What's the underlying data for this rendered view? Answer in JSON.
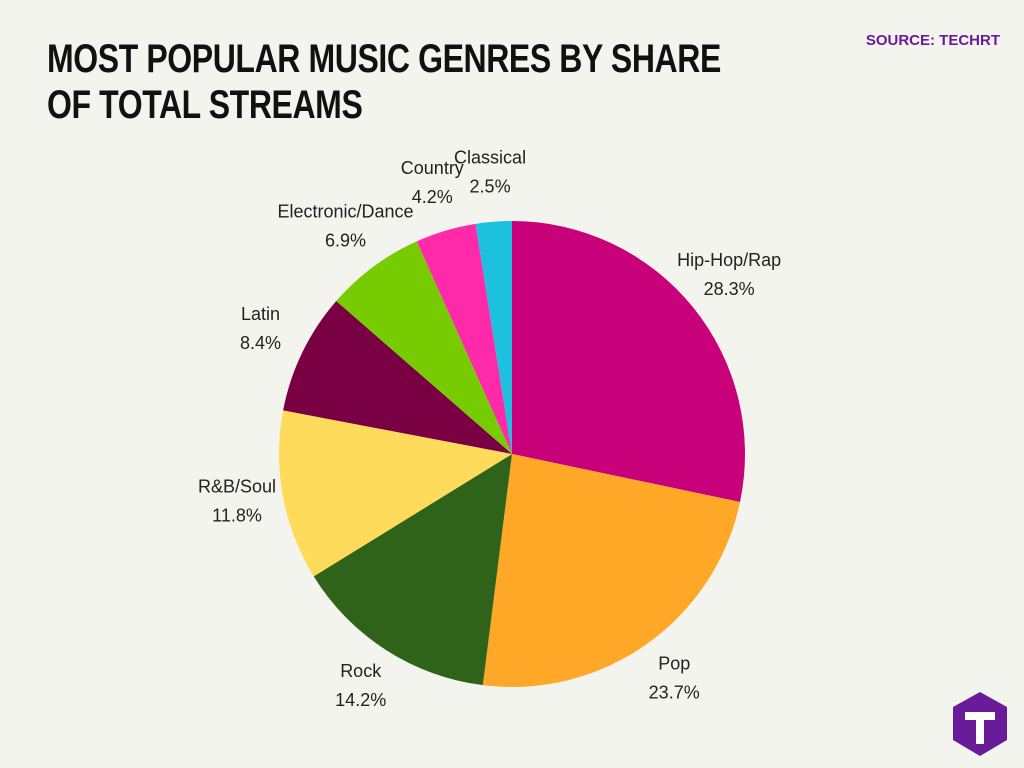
{
  "chart_data": {
    "type": "pie",
    "title": "MOST POPULAR MUSIC GENRES BY SHARE OF TOTAL STREAMS",
    "source": "SOURCE: TECHRT",
    "categories": [
      "Hip-Hop/Rap",
      "Pop",
      "Rock",
      "R&B/Soul",
      "Latin",
      "Electronic/Dance",
      "Country",
      "Classical"
    ],
    "values": [
      28.3,
      23.7,
      14.2,
      11.8,
      8.4,
      6.9,
      4.2,
      2.5
    ],
    "value_labels": [
      "28.3%",
      "23.7%",
      "14.2%",
      "11.8%",
      "8.4%",
      "6.9%",
      "4.2%",
      "2.5%"
    ],
    "colors": [
      "#c8007a",
      "#ffa726",
      "#2e6319",
      "#ffdb5c",
      "#7a0044",
      "#76cc00",
      "#ff2aaa",
      "#1ec0e0"
    ]
  }
}
